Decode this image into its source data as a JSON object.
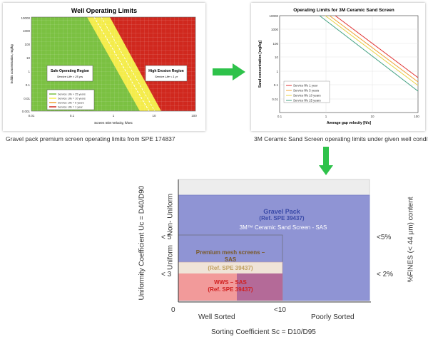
{
  "left_chart": {
    "title": "Well Operating Limits",
    "ylabel": "Solids concentration, mg/kg",
    "xlabel": "Screen Inlet Velocity, ft/sec",
    "yticks": [
      "10000",
      "1000",
      "100",
      "10",
      "1",
      "0.1",
      "0.01",
      "0.001"
    ],
    "xticks": [
      "0.01",
      "0.1",
      "1",
      "10",
      "100"
    ],
    "safe_region": "Safe Operating Region",
    "safe_sub": "Service Life > 25 yrs",
    "erosion_region": "High Erosion Region",
    "erosion_sub": "Service Life < 1 yr",
    "legend": [
      "Service Life > 25 years",
      "Service Life = 10 years",
      "Service Life = 5 years",
      "Service Life = 1 year"
    ],
    "caption": "Gravel pack premium screen operating limits from SPE 174837"
  },
  "right_chart": {
    "title": "Operating Limits for 3M Ceramic Sand Screen",
    "ylabel": "Sand concentration [mg/kg]",
    "xlabel": "Average gap velocity [ft/s]",
    "yticks": [
      "10000",
      "1000",
      "100",
      "10",
      "1",
      "0.1",
      "0.01"
    ],
    "xticks": [
      "0.1",
      "1",
      "10",
      "100"
    ],
    "legend": [
      {
        "name": "Service life 1 year",
        "color": "#e03030"
      },
      {
        "name": "Service life 5 years",
        "color": "#f0a030"
      },
      {
        "name": "Service life 10 years",
        "color": "#e8d040"
      },
      {
        "name": "Service life 25 years",
        "color": "#40a080"
      }
    ],
    "caption": "3M Ceramic Sand Screen operating limits under given well conditions"
  },
  "main_chart": {
    "ylabel": "Uniformity Coefficient Uc = D40/D90",
    "xlabel": "Sorting Coefficient Sc = D10/D95",
    "right_label": "%FINES (< 44 µm) content",
    "y_axis_labels": {
      "non_uniform": "Non- Uniform",
      "uniform": "Uniform",
      "lt5": "< 5",
      "lt3": "< 3"
    },
    "x_axis_labels": {
      "zero": "0",
      "well": "Well Sorted",
      "lt10": "<10",
      "poor": "Poorly Sorted"
    },
    "right_axis": {
      "lt5": "<5%",
      "lt2": "< 2%"
    },
    "regions": {
      "gravel_pack": "Gravel Pack",
      "gravel_ref": "(Ref. SPE 39437)",
      "ceramic": "3M™ Ceramic Sand Screen - SAS",
      "premium": "Premium mesh screens –",
      "premium2": "SAS",
      "premium_ref": "(Ref. SPE 39437)",
      "wws": "WWS – SAS",
      "wws_ref": "(Ref. SPE 39437)"
    }
  }
}
